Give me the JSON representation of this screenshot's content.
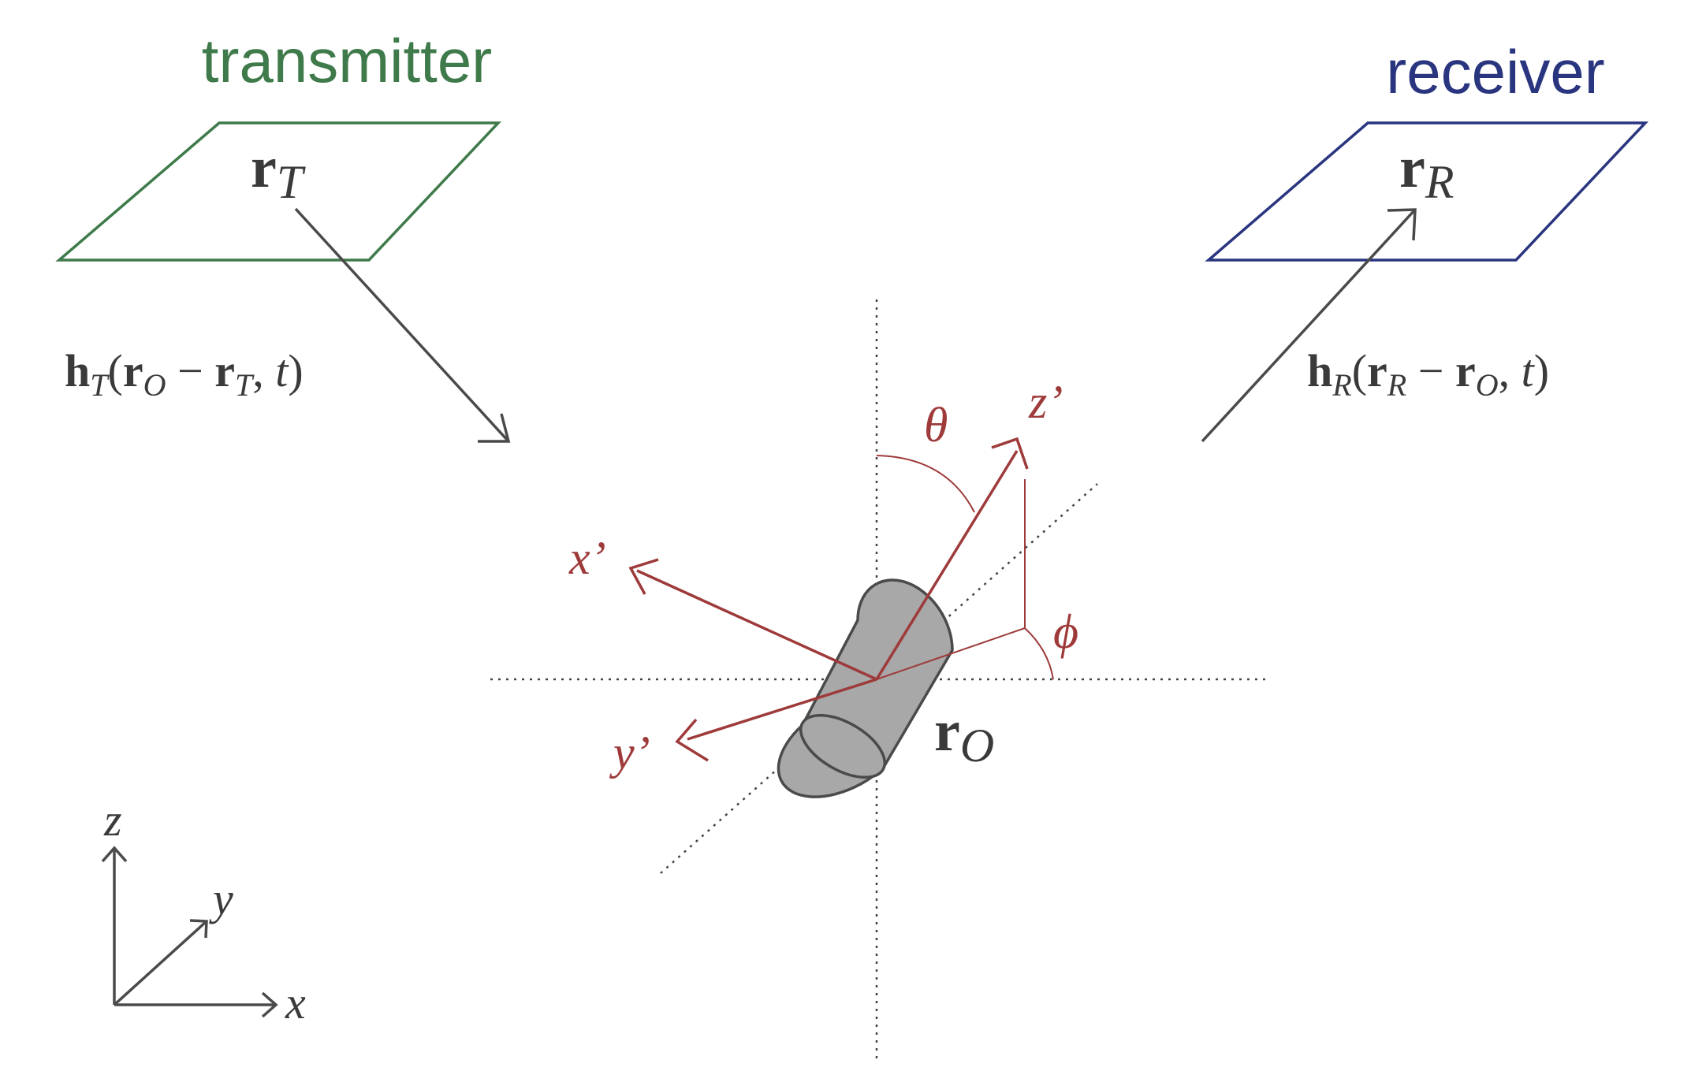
{
  "colors": {
    "transmitter": "#3f7a4a",
    "receiver": "#2a3580",
    "body_frame": "#9e3a3a",
    "ink": "#3a3a3a",
    "object_fill": "#a8a8a8",
    "object_stroke": "#4a4a4a"
  },
  "transmitter": {
    "title": "transmitter",
    "position_symbol": "r",
    "position_sub": "T"
  },
  "receiver": {
    "title": "receiver",
    "position_symbol": "r",
    "position_sub": "R"
  },
  "object": {
    "position_symbol": "r",
    "position_sub": "O"
  },
  "channel_tx": {
    "func": "h",
    "func_sub": "T",
    "open": "(",
    "r1": "r",
    "r1_sub": "O",
    "minus": " − ",
    "r2": "r",
    "r2_sub": "T",
    "comma": ", ",
    "t": "t",
    "close": ")"
  },
  "channel_rx": {
    "func": "h",
    "func_sub": "R",
    "open": "(",
    "r1": "r",
    "r1_sub": "R",
    "minus": " − ",
    "r2": "r",
    "r2_sub": "O",
    "comma": ", ",
    "t": "t",
    "close": ")"
  },
  "body_axes": {
    "x_label": "x’",
    "y_label": "y’",
    "z_label": "z’",
    "theta": "θ",
    "phi": "ϕ"
  },
  "world_axes": {
    "x": "x",
    "y": "y",
    "z": "z"
  }
}
